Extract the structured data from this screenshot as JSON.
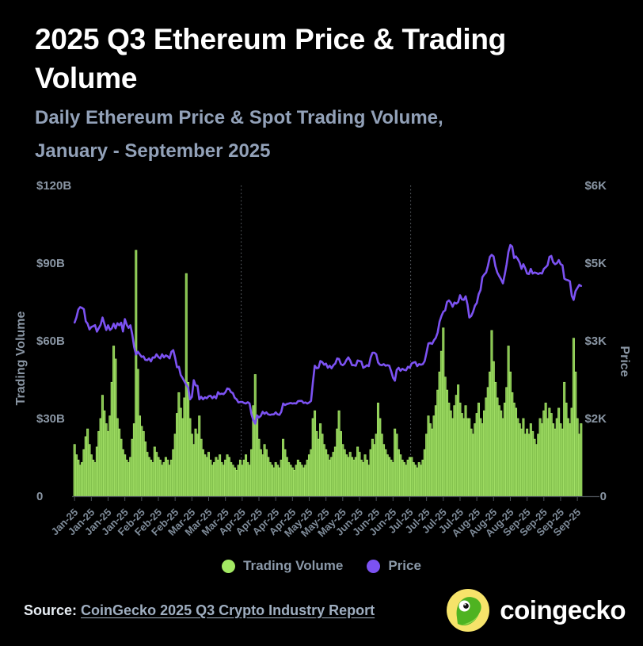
{
  "header": {
    "title": "2025 Q3 Ethereum Price & Trading Volume",
    "subtitle_line1": "Daily Ethereum Price & Spot Trading Volume,",
    "subtitle_line2": "January - September 2025"
  },
  "chart_data": {
    "type": "bar+line",
    "title": "2025 Q3 Ethereum Price & Trading Volume",
    "frequency": "daily",
    "start_date": "2025-01-01",
    "end_date": "2025-09-30",
    "left_axis": {
      "label": "Trading Volume",
      "range": [
        0,
        120
      ],
      "unit": "USD billions",
      "ticks": [
        {
          "label": "0",
          "value": 0
        },
        {
          "label": "$30B",
          "value": 30
        },
        {
          "label": "$60B",
          "value": 60
        },
        {
          "label": "$90B",
          "value": 90
        },
        {
          "label": "$120B",
          "value": 120
        }
      ]
    },
    "right_axis": {
      "label": "Price",
      "range": [
        0,
        6000
      ],
      "unit": "USD",
      "ticks": [
        {
          "label": "0",
          "value": 0
        },
        {
          "label": "$2K",
          "value": 1500
        },
        {
          "label": "$3K",
          "value": 3000
        },
        {
          "label": "$5K",
          "value": 4500
        },
        {
          "label": "$6K",
          "value": 6000
        }
      ]
    },
    "x_tick_interval_days": 9,
    "x_tick_labels": [
      "Jan-25",
      "Jan-25",
      "Jan-25",
      "Jan-25",
      "Feb-25",
      "Feb-25",
      "Feb-25",
      "Mar-25",
      "Mar-25",
      "Mar-25",
      "Apr-25",
      "Apr-25",
      "Apr-25",
      "Apr-25",
      "May-25",
      "May-25",
      "May-25",
      "Jun-25",
      "Jun-25",
      "Jun-25",
      "Jul-25",
      "Jul-25",
      "Jul-25",
      "Jul-25",
      "Aug-25",
      "Aug-25",
      "Aug-25",
      "Sep-25",
      "Sep-25",
      "Sep-25",
      "Sep-25"
    ],
    "quarter_gridline_days": [
      90,
      181
    ],
    "grid": "vertical dotted lines at quarter starts (Apr-25, Jul-25)",
    "legend_position": "bottom",
    "series": [
      {
        "name": "Trading Volume",
        "type": "bar",
        "axis": "left",
        "unit": "USD billions",
        "color": "#84C24E",
        "values": [
          20,
          16,
          14,
          12,
          13,
          18,
          23,
          26,
          20,
          16,
          14,
          13,
          19,
          25,
          30,
          39,
          33,
          28,
          25,
          31,
          44,
          58,
          53,
          30,
          26,
          22,
          18,
          16,
          14,
          13,
          15,
          22,
          28,
          95,
          49,
          31,
          27,
          25,
          21,
          17,
          15,
          14,
          13,
          19,
          17,
          15,
          14,
          12,
          13,
          15,
          14,
          12,
          14,
          18,
          24,
          32,
          40,
          34,
          30,
          38,
          86,
          44,
          30,
          24,
          20,
          26,
          24,
          31,
          22,
          18,
          16,
          15,
          17,
          14,
          12,
          13,
          15,
          14,
          16,
          13,
          12,
          14,
          16,
          15,
          13,
          12,
          11,
          10,
          12,
          14,
          12,
          14,
          16,
          13,
          12,
          18,
          35,
          47,
          30,
          22,
          18,
          16,
          20,
          18,
          15,
          13,
          12,
          11,
          13,
          12,
          11,
          14,
          22,
          18,
          15,
          13,
          12,
          11,
          10,
          12,
          14,
          13,
          12,
          11,
          12,
          14,
          16,
          18,
          30,
          33,
          25,
          22,
          28,
          24,
          20,
          18,
          16,
          14,
          15,
          17,
          19,
          26,
          33,
          25,
          20,
          18,
          16,
          15,
          17,
          15,
          14,
          15,
          19,
          17,
          14,
          13,
          16,
          14,
          12,
          18,
          22,
          20,
          24,
          36,
          30,
          24,
          20,
          18,
          16,
          15,
          14,
          13,
          26,
          24,
          18,
          16,
          14,
          13,
          12,
          14,
          15,
          15,
          13,
          12,
          11,
          13,
          12,
          14,
          18,
          24,
          31,
          28,
          26,
          31,
          35,
          41,
          48,
          56,
          65,
          46,
          41,
          36,
          33,
          30,
          35,
          39,
          43,
          36,
          32,
          30,
          35,
          30,
          30,
          26,
          24,
          28,
          32,
          36,
          30,
          28,
          33,
          38,
          42,
          48,
          64,
          52,
          44,
          38,
          35,
          33,
          30,
          36,
          42,
          58,
          48,
          40,
          36,
          34,
          30,
          28,
          26,
          30,
          24,
          26,
          24,
          28,
          25,
          22,
          20,
          24,
          30,
          28,
          33,
          36,
          30,
          34,
          32,
          28,
          26,
          30,
          34,
          28,
          26,
          44,
          36,
          30,
          28,
          34,
          61,
          48,
          30,
          24,
          28
        ]
      },
      {
        "name": "Price",
        "type": "line",
        "axis": "right",
        "unit": "USD",
        "color": "#7C52F2",
        "values": [
          3353,
          3450,
          3605,
          3650,
          3635,
          3610,
          3380,
          3330,
          3220,
          3267,
          3283,
          3303,
          3178,
          3244,
          3310,
          3450,
          3330,
          3210,
          3300,
          3210,
          3240,
          3330,
          3240,
          3340,
          3300,
          3350,
          3180,
          3420,
          3310,
          3250,
          3300,
          3118,
          2880,
          2735,
          2790,
          2740,
          2690,
          2700,
          2633,
          2627,
          2660,
          2603,
          2680,
          2675,
          2740,
          2690,
          2660,
          2740,
          2680,
          2720,
          2700,
          2662,
          2790,
          2820,
          2670,
          2490,
          2500,
          2340,
          2280,
          2216,
          2150,
          2100,
          1870,
          1920,
          2240,
          2140,
          2130,
          1870,
          1920,
          1870,
          1910,
          1890,
          1930,
          1940,
          1890,
          1930,
          1890,
          2010,
          1970,
          1980,
          1970,
          2010,
          2080,
          2070,
          2010,
          1990,
          1900,
          1870,
          1810,
          1820,
          1822,
          1800,
          1790,
          1815,
          1790,
          1580,
          1470,
          1400,
          1560,
          1520,
          1550,
          1630,
          1590,
          1620,
          1580,
          1570,
          1580,
          1580,
          1620,
          1580,
          1570,
          1630,
          1790,
          1760,
          1780,
          1790,
          1800,
          1790,
          1795,
          1790,
          1835,
          1840,
          1840,
          1800,
          1810,
          1790,
          1810,
          1840,
          2210,
          2520,
          2470,
          2480,
          2610,
          2590,
          2540,
          2560,
          2480,
          2520,
          2470,
          2530,
          2560,
          2660,
          2650,
          2550,
          2530,
          2560,
          2630,
          2680,
          2620,
          2530,
          2530,
          2520,
          2620,
          2610,
          2600,
          2480,
          2500,
          2530,
          2510,
          2680,
          2770,
          2770,
          2740,
          2580,
          2540,
          2530,
          2550,
          2520,
          2530,
          2520,
          2410,
          2290,
          2230,
          2440,
          2480,
          2420,
          2460,
          2440,
          2430,
          2500,
          2480,
          2560,
          2580,
          2590,
          2510,
          2550,
          2540,
          2550,
          2610,
          2770,
          2950,
          2960,
          2940,
          3010,
          3060,
          3160,
          3370,
          3480,
          3560,
          3590,
          3750,
          3780,
          3740,
          3660,
          3740,
          3720,
          3750,
          3880,
          3800,
          3790,
          3860,
          3700,
          3450,
          3480,
          3560,
          3680,
          3730,
          3900,
          3980,
          4230,
          4280,
          4320,
          4450,
          4620,
          4660,
          4630,
          4440,
          4320,
          4250,
          4190,
          4110,
          4280,
          4480,
          4720,
          4850,
          4820,
          4600,
          4630,
          4580,
          4510,
          4390,
          4480,
          4400,
          4300,
          4290,
          4390,
          4300,
          4320,
          4310,
          4290,
          4310,
          4300,
          4390,
          4420,
          4460,
          4620,
          4640,
          4520,
          4480,
          4500,
          4560,
          4480,
          4460,
          4200,
          4180,
          4170,
          4150,
          3870,
          3790,
          3960,
          4020,
          4080,
          4060
        ]
      }
    ]
  },
  "legend": {
    "volume_label": "Trading Volume",
    "volume_color": "#A3E963",
    "price_label": "Price",
    "price_color": "#7C52F2"
  },
  "footer": {
    "source_label": "Source:",
    "source_link": "CoinGecko 2025 Q3 Crypto Industry Report",
    "brand_wordmark": "coingecko"
  },
  "colors": {
    "background": "#000000",
    "title": "#FFFFFF",
    "subtitle": "#92A1B8",
    "axis_text": "#8A96A4",
    "x_tick_text": "#7F8C9A",
    "volume_fill": "#84C24E",
    "volume_edge": "#A9E76C",
    "price_line": "#7C52F2",
    "gridline": "#63686E",
    "axis_line": "#4B5157",
    "source_link": "#9FAEC0",
    "logo_yellow": "#F6E36A",
    "logo_green": "#4FB321"
  }
}
